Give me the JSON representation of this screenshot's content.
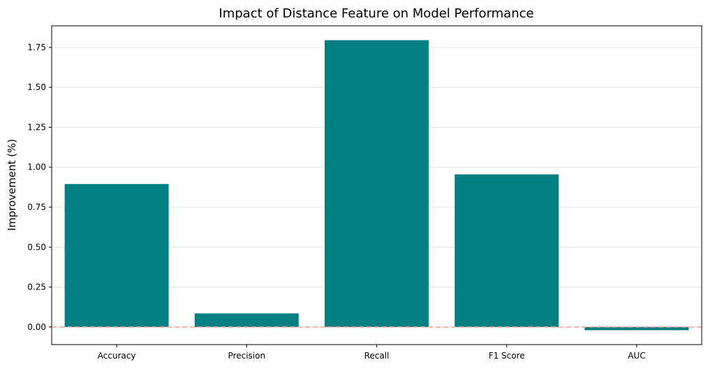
{
  "chart_data": {
    "type": "bar",
    "title": "Impact of Distance Feature on Model Performance",
    "xlabel": "",
    "ylabel": "Improvement (%)",
    "categories": [
      "Accuracy",
      "Precision",
      "Recall",
      "F1 Score",
      "AUC"
    ],
    "values": [
      0.895,
      0.085,
      1.795,
      0.955,
      -0.02
    ],
    "ylim": [
      -0.11,
      1.885
    ],
    "yticks": [
      0.0,
      0.25,
      0.5,
      0.75,
      1.0,
      1.25,
      1.5,
      1.75
    ],
    "ytick_labels": [
      "0.00",
      "0.25",
      "0.50",
      "0.75",
      "1.00",
      "1.25",
      "1.50",
      "1.75"
    ],
    "grid": "horizontal",
    "reference_line": {
      "y": 0,
      "style": "dashed"
    },
    "colors": {
      "bar": "#008080",
      "reference_line": "#f4a39a",
      "grid": "#e6e6e6",
      "axes": "#000000"
    }
  }
}
